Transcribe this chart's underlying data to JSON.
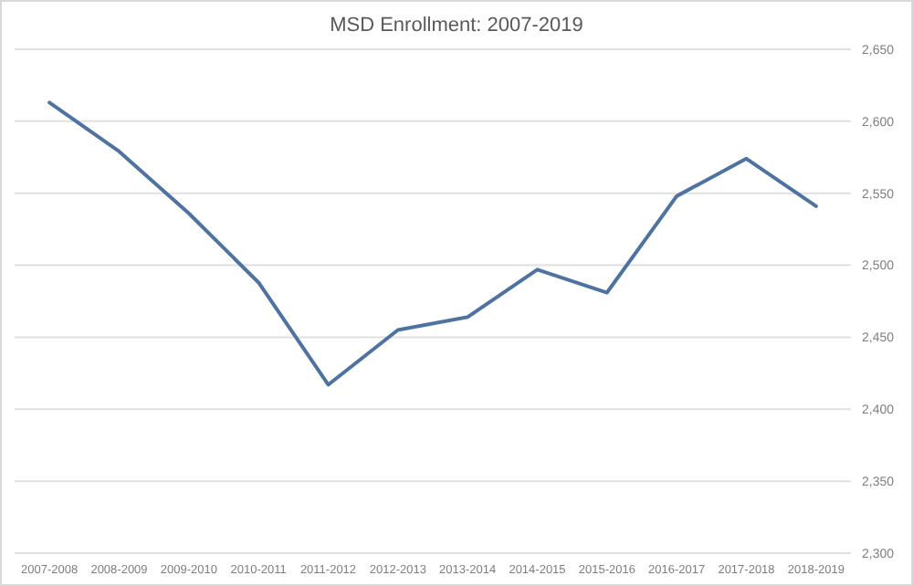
{
  "chart_data": {
    "type": "line",
    "title": "MSD Enrollment: 2007-2019",
    "categories": [
      "2007-2008",
      "2008-2009",
      "2009-2010",
      "2010-2011",
      "2011-2012",
      "2012-2013",
      "2013-2014",
      "2014-2015",
      "2015-2016",
      "2016-2017",
      "2017-2018",
      "2018-2019"
    ],
    "series": [
      {
        "color": "#4e73a0",
        "values": [
          2613,
          2579,
          2536,
          2488,
          2417,
          2455,
          2464,
          2497,
          2481,
          2548,
          2574,
          2541
        ]
      }
    ],
    "ylim": [
      2300,
      2650
    ],
    "yticks": [
      {
        "value": 2300,
        "label": "2,300"
      },
      {
        "value": 2350,
        "label": "2,350"
      },
      {
        "value": 2400,
        "label": "2,400"
      },
      {
        "value": 2450,
        "label": "2,450"
      },
      {
        "value": 2500,
        "label": "2,500"
      },
      {
        "value": 2550,
        "label": "2,550"
      },
      {
        "value": 2600,
        "label": "2,600"
      },
      {
        "value": 2650,
        "label": "2,650"
      }
    ],
    "grid": "y",
    "marker": "none",
    "line_style": "solid"
  }
}
